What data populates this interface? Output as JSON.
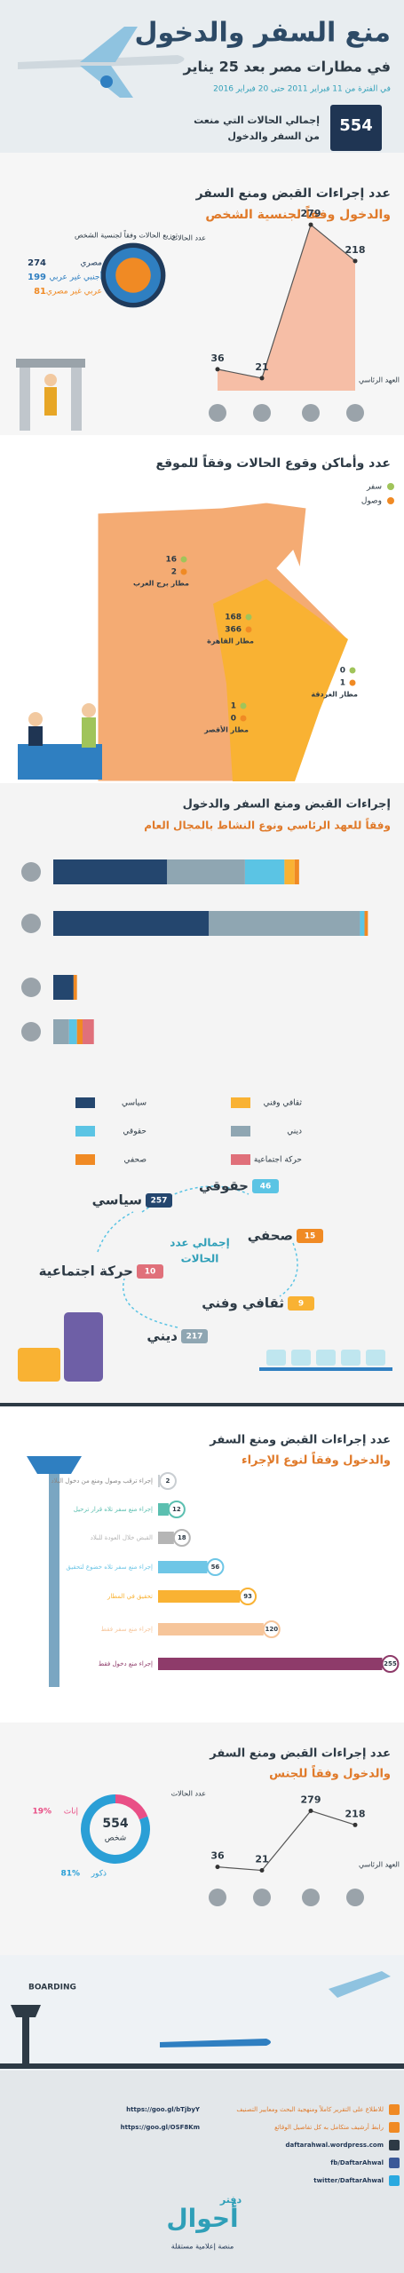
{
  "header": {
    "title": "منع السفر والدخول",
    "subtitle": "في مطارات مصر بعد 25 يناير",
    "period": "في الفترة من 11 فبراير 2011 حتى 20 فبراير 2016",
    "total": 554,
    "caption_1": "إجمالي الحالات التي منعت",
    "caption_2": "من السفر والدخول"
  },
  "nationality": {
    "title_1": "عدد إجراءات القبض ومنع السفر",
    "title_2": "والدخول وفقاً لجنسية الشخص",
    "distribution_title": "توزيع الحالات وفقاً لجنسية الشخص",
    "groups": [
      {
        "value": 274,
        "label": "مصري",
        "color": "#1f3b5c"
      },
      {
        "value": 199,
        "label": "أجنبي غير عربي",
        "color": "#2f7fc1"
      },
      {
        "value": 81,
        "label": "عربي غير مصري",
        "color": "#f08a24"
      }
    ],
    "axis_label": "عدد الحالات",
    "era_label": "العهد الرئاسي",
    "era_counts": [
      36,
      21,
      279,
      218
    ]
  },
  "location": {
    "title": "عدد وأماكن وقوع الحالات وفقاً للموقع",
    "legend": [
      {
        "label": "سفر",
        "color": "#a0c45a"
      },
      {
        "label": "وصول",
        "color": "#f08a24"
      }
    ],
    "airports": [
      {
        "name": "مطار برج العرب",
        "travel": 16,
        "arrival": 2
      },
      {
        "name": "مطار القاهرة",
        "travel": 168,
        "arrival": 366
      },
      {
        "name": "مطار الغردقة",
        "travel": 0,
        "arrival": 1
      },
      {
        "name": "مطار الأقصر",
        "travel": 1,
        "arrival": 0
      }
    ]
  },
  "activity": {
    "title_1": "إجراءات القبض ومنع السفر والدخول",
    "title_2": "وفقاً للعهد الرئاسي ونوع النشاط بالمجال العام",
    "categories": [
      {
        "name": "سياسي",
        "color": "#24466e",
        "values": [
          101,
          138,
          18,
          0
        ],
        "total": 257
      },
      {
        "name": "ثقافي وفني",
        "color": "#f9b233",
        "values": [
          9,
          0,
          0,
          0
        ],
        "total": 9
      },
      {
        "name": "حقوقي",
        "color": "#5bc4e4",
        "values": [
          35,
          4,
          0,
          7
        ],
        "total": 46
      },
      {
        "name": "ديني",
        "color": "#8fa6b2",
        "values": [
          69,
          134,
          0,
          14
        ],
        "total": 217
      },
      {
        "name": "صحفي",
        "color": "#f08a24",
        "values": [
          4,
          3,
          3,
          5
        ],
        "total": 15
      },
      {
        "name": "حركة اجتماعية",
        "color": "#e0707a",
        "values": [
          0,
          0,
          0,
          10
        ],
        "total": 10
      }
    ],
    "cycle_label_1": "إجمالي عدد",
    "cycle_label_2": "الحالات"
  },
  "procedure": {
    "title_1": "عدد إجراءات القبض ومنع السفر",
    "title_2": "والدخول وفقاً لنوع الإجراء",
    "items": [
      {
        "label": "إجراء ترقب وصول ومنع من دخول البلاد",
        "value": 2,
        "color": "#c9ced2"
      },
      {
        "label": "إجراء منع سفر تلاه قرار ترحيل",
        "value": 12,
        "color": "#5bbfb0"
      },
      {
        "label": "القبض خلال العودة للبلاد",
        "value": 18,
        "color": "#b5b5b5"
      },
      {
        "label": "إجراء منع سفر تلاه خضوع لتحقيق",
        "value": 56,
        "color": "#6ec6e6"
      },
      {
        "label": "تحقيق في المطار",
        "value": 93,
        "color": "#f9b233"
      },
      {
        "label": "إجراء منع سفر فقط",
        "value": 120,
        "color": "#f6c59a"
      },
      {
        "label": "إجراء منع دخول فقط",
        "value": 255,
        "color": "#8e3b6a"
      }
    ]
  },
  "gender": {
    "title_1": "عدد إجراءات القبض ومنع السفر",
    "title_2": "والدخول وفقاً للجنس",
    "total": 554,
    "unit": "شخص",
    "values": [
      19,
      81
    ],
    "value_labels": [
      "19%",
      "81%"
    ],
    "labels": [
      "إناث",
      "ذكور"
    ],
    "colors": [
      "#e94f86",
      "#2a9fd6"
    ],
    "axis_label": "عدد الحالات",
    "era_label": "العهد الرئاسي",
    "era_counts": [
      36,
      21,
      279,
      218
    ]
  },
  "boarding": "BOARDING",
  "footer": {
    "links": [
      {
        "url": "https://goo.gl/bTjbyY",
        "text": "للاطلاع على التقرير كاملاً ومنهجية البحث ومعايير التصنيف"
      },
      {
        "url": "https://goo.gl/OSF8Km",
        "text": "رابط أرشيف متكامل به كل تفاصيل الوقائع"
      },
      {
        "url": "daftarahwal.wordpress.com"
      },
      {
        "url": "fb/DaftarAhwal"
      },
      {
        "url": "twitter/DaftarAhwal"
      }
    ],
    "logo_small": "دفتر",
    "logo": "أحوال",
    "tagline": "منصة إعلامية مستقلة"
  }
}
